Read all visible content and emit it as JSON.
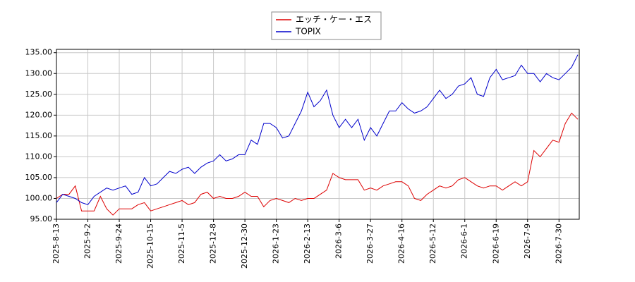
{
  "chart_data": {
    "type": "line",
    "categories": [
      "2025-8-13",
      null,
      null,
      null,
      null,
      "2025-9-2",
      null,
      null,
      null,
      null,
      "2025-9-24",
      null,
      null,
      null,
      null,
      "2025-10-15",
      null,
      null,
      null,
      null,
      "2025-11-5",
      null,
      null,
      null,
      null,
      "2025-12-8",
      null,
      null,
      null,
      null,
      "2025-12-30",
      null,
      null,
      null,
      null,
      "2026-1-23",
      null,
      null,
      null,
      null,
      "2026-2-13",
      null,
      null,
      null,
      null,
      "2026-3-6",
      null,
      null,
      null,
      null,
      "2026-3-27",
      null,
      null,
      null,
      null,
      "2026-4-16",
      null,
      null,
      null,
      null,
      "2026-5-12",
      null,
      null,
      null,
      null,
      "2026-6-1",
      null,
      null,
      null,
      null,
      "2026-6-19",
      null,
      null,
      null,
      null,
      "2026-7-9",
      null,
      null,
      null,
      null,
      "2026-7-30",
      null,
      null,
      null
    ],
    "series": [
      {
        "name": "エッチ・ケー・エス",
        "color": "#dd0000",
        "values": [
          100,
          101,
          101,
          103,
          97,
          97,
          97,
          100.5,
          97.5,
          96,
          97.5,
          97.5,
          97.5,
          98.5,
          99,
          97,
          97.5,
          98,
          98.5,
          99,
          99.5,
          98.5,
          99,
          101,
          101.5,
          100,
          100.5,
          100,
          100,
          100.5,
          101.5,
          100.5,
          100.5,
          98,
          99.5,
          100,
          99.5,
          99,
          100,
          99.5,
          100,
          100,
          101,
          102,
          106,
          105,
          104.5,
          104.5,
          104.5,
          102,
          102.5,
          102,
          103,
          103.5,
          104,
          104,
          103,
          100,
          99.5,
          101,
          102,
          103,
          102.5,
          103,
          104.5,
          105,
          104,
          103,
          102.5,
          103,
          103,
          102,
          103,
          104,
          103,
          104,
          111.5,
          110,
          112,
          114,
          113.5,
          118,
          120.5,
          119
        ]
      },
      {
        "name": "TOPIX",
        "color": "#0000cc",
        "values": [
          99,
          101,
          100.5,
          100,
          99,
          98.5,
          100.5,
          101.5,
          102.5,
          102,
          102.5,
          103,
          101,
          101.5,
          105,
          103,
          103.5,
          105,
          106.5,
          106,
          107,
          107.5,
          106,
          107.5,
          108.5,
          109,
          110.5,
          109,
          109.5,
          110.5,
          110.5,
          114,
          113,
          118,
          118,
          117,
          114.5,
          115,
          118,
          121,
          125.5,
          122,
          123.5,
          126,
          120,
          117,
          119,
          117,
          119,
          114,
          117,
          115,
          118,
          121,
          121,
          123,
          121.5,
          120.5,
          121,
          122,
          124,
          126,
          124,
          125,
          127,
          127.5,
          129,
          125,
          124.5,
          129,
          131,
          128.5,
          129,
          129.5,
          132,
          130,
          130,
          128,
          130,
          129,
          128.5,
          130,
          131.5,
          134.5
        ]
      }
    ],
    "ylim": [
      95,
      135.8
    ],
    "yticks": [
      {
        "value": 95,
        "label": "95.00"
      },
      {
        "value": 100,
        "label": "100.00"
      },
      {
        "value": 105,
        "label": "105.00"
      },
      {
        "value": 110,
        "label": "110.00"
      },
      {
        "value": 115,
        "label": "115.00"
      },
      {
        "value": 120,
        "label": "120.00"
      },
      {
        "value": 125,
        "label": "125.00"
      },
      {
        "value": 130,
        "label": "130.00"
      },
      {
        "value": 135,
        "label": "135.00"
      }
    ],
    "grid": true,
    "legend": "top"
  }
}
